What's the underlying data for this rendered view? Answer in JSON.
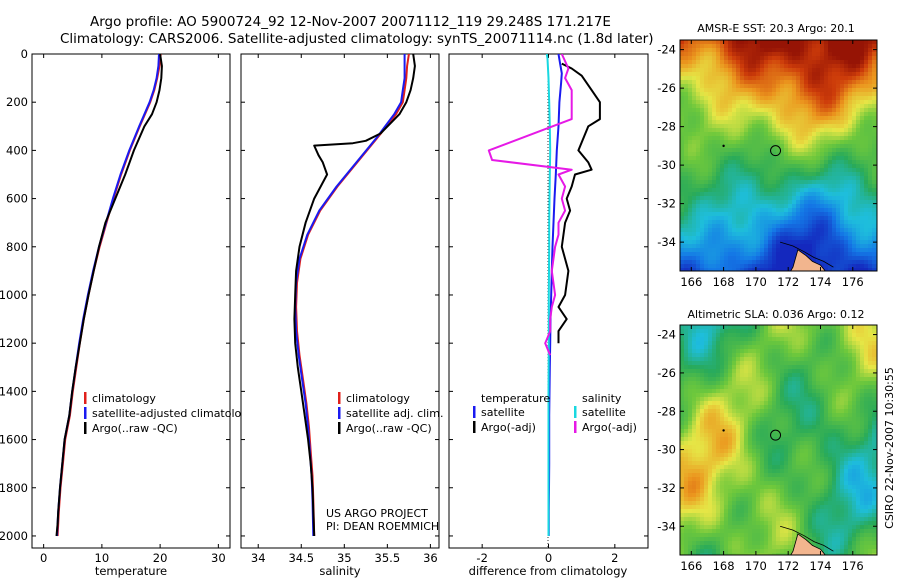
{
  "header": {
    "line1": "Argo profile: AO 5900724_92 12-Nov-2007 20071112_119 29.248S 171.217E",
    "line2": "Climatology: CARS2006. Satellite-adjusted climatology: synTS_20071114.nc (1.8d later)"
  },
  "side_label": "CSIRO 22-Nov-2007 10:30:55",
  "colors": {
    "climatology": "#e0201b",
    "satellite": "#1a1af0",
    "argo": "#000000",
    "sat_salinity": "#19d8e0",
    "argo_salinity": "#e619e6"
  },
  "chart_data": [
    {
      "type": "line",
      "xlabel": "temperature",
      "ylabel": "",
      "xlim": [
        -2,
        32
      ],
      "ylim": [
        2050,
        0
      ],
      "xticks": [
        0,
        10,
        20,
        30
      ],
      "yticks": [
        0,
        200,
        400,
        600,
        800,
        1000,
        1200,
        1400,
        1600,
        1800,
        2000
      ],
      "legend": [
        "climatology",
        "satellite-adjusted climatology",
        "Argo(..raw -QC)"
      ],
      "series": [
        {
          "name": "climatology",
          "color": "#e0201b",
          "x": [
            20.1,
            19.9,
            19.5,
            19.0,
            18.3,
            16.5,
            14.8,
            13.3,
            12.0,
            10.8,
            9.6,
            8.6,
            7.7,
            6.9,
            6.2,
            5.6,
            5.0,
            4.5,
            3.7,
            3.3,
            2.9,
            2.6,
            2.5,
            2.4
          ],
          "y": [
            0,
            50,
            100,
            150,
            200,
            300,
            400,
            500,
            600,
            700,
            800,
            900,
            1000,
            1100,
            1200,
            1300,
            1400,
            1500,
            1600,
            1700,
            1800,
            1900,
            1950,
            2000
          ]
        },
        {
          "name": "satellite-adjusted climatology",
          "color": "#1a1af0",
          "x": [
            19.8,
            19.7,
            19.4,
            18.9,
            18.2,
            16.4,
            14.7,
            13.2,
            11.9,
            10.7,
            9.5,
            8.5,
            7.6,
            6.8,
            6.1,
            5.5,
            4.9,
            4.4,
            3.6,
            3.2,
            2.8,
            2.5,
            2.4,
            2.3
          ],
          "y": [
            0,
            50,
            100,
            150,
            200,
            300,
            400,
            500,
            600,
            700,
            800,
            900,
            1000,
            1100,
            1200,
            1300,
            1400,
            1500,
            1600,
            1700,
            1800,
            1900,
            1950,
            2000
          ]
        },
        {
          "name": "Argo(..raw -QC)",
          "color": "#000000",
          "x": [
            20.0,
            20.3,
            20.2,
            19.9,
            19.4,
            18.6,
            17.3,
            15.5,
            14.0,
            12.3,
            10.6,
            9.5,
            8.6,
            7.7,
            6.9,
            6.2,
            5.5,
            4.9,
            4.4,
            3.6,
            3.2,
            2.8,
            2.5,
            2.4,
            2.2
          ],
          "y": [
            0,
            50,
            100,
            150,
            200,
            250,
            300,
            400,
            500,
            600,
            700,
            800,
            900,
            1000,
            1100,
            1200,
            1300,
            1400,
            1500,
            1600,
            1700,
            1800,
            1900,
            1950,
            2000
          ]
        }
      ]
    },
    {
      "type": "line",
      "xlabel": "salinity",
      "ylabel": "",
      "xlim": [
        33.8,
        36.1
      ],
      "ylim": [
        2050,
        0
      ],
      "xticks": [
        34,
        34.5,
        35,
        35.5,
        36
      ],
      "xticklabels": [
        "34",
        "34.5",
        "35",
        "35.5",
        "36"
      ],
      "legend": [
        "climatology",
        "satellite adj. clim.",
        "Argo(..raw -QC)"
      ],
      "series": [
        {
          "name": "climatology",
          "color": "#e0201b",
          "x": [
            35.75,
            35.73,
            35.72,
            35.7,
            35.68,
            35.6,
            35.38,
            35.15,
            34.92,
            34.72,
            34.58,
            34.49,
            34.45,
            34.44,
            34.45,
            34.48,
            34.52,
            34.56,
            34.59,
            34.61,
            34.63,
            34.64,
            34.65
          ],
          "y": [
            0,
            50,
            100,
            150,
            200,
            250,
            350,
            450,
            550,
            650,
            750,
            850,
            950,
            1050,
            1150,
            1250,
            1350,
            1450,
            1550,
            1650,
            1750,
            1850,
            2000
          ]
        },
        {
          "name": "satellite adj. clim.",
          "color": "#1a1af0",
          "x": [
            35.7,
            35.7,
            35.7,
            35.68,
            35.66,
            35.58,
            35.37,
            35.14,
            34.91,
            34.71,
            34.57,
            34.48,
            34.44,
            34.43,
            34.44,
            34.47,
            34.51,
            34.55,
            34.58,
            34.6,
            34.62,
            34.63,
            34.64
          ],
          "y": [
            0,
            50,
            100,
            150,
            200,
            250,
            350,
            450,
            550,
            650,
            750,
            850,
            950,
            1050,
            1150,
            1250,
            1350,
            1450,
            1550,
            1650,
            1750,
            1850,
            2000
          ]
        },
        {
          "name": "Argo(..raw -QC)",
          "color": "#000000",
          "x": [
            35.8,
            35.82,
            35.8,
            35.77,
            35.72,
            35.64,
            35.42,
            35.25,
            35.1,
            34.65,
            34.7,
            34.75,
            34.8,
            34.65,
            34.55,
            34.48,
            34.44,
            34.43,
            34.42,
            34.43,
            34.46,
            34.5,
            34.54,
            34.58,
            34.61,
            34.63,
            34.65
          ],
          "y": [
            0,
            50,
            100,
            150,
            200,
            250,
            330,
            360,
            370,
            380,
            420,
            450,
            500,
            600,
            700,
            800,
            900,
            1000,
            1100,
            1200,
            1300,
            1400,
            1500,
            1600,
            1700,
            1800,
            2000
          ]
        }
      ]
    },
    {
      "type": "line",
      "xlabel": "difference from climatology",
      "ylabel": "",
      "xlim": [
        -3,
        3
      ],
      "ylim": [
        2050,
        0
      ],
      "xticks": [
        -2,
        0,
        2
      ],
      "legend_titles": [
        "temperature",
        "salinity"
      ],
      "legend": [
        "satellite",
        "Argo(-adj)",
        "satellite",
        "Argo(-adj)"
      ],
      "series": [
        {
          "name": "satellite",
          "group": "temperature",
          "color": "#1a1af0",
          "x": [
            0.3,
            0.35,
            0.4,
            0.38,
            0.33,
            0.3,
            0.25,
            0.22,
            0.18,
            0.15,
            0.12,
            0.1,
            0.08,
            0.06,
            0.05,
            0.04,
            0.03,
            0.02,
            0.02,
            0.01,
            0.01
          ],
          "y": [
            0,
            40,
            80,
            120,
            200,
            300,
            400,
            500,
            600,
            700,
            800,
            900,
            1000,
            1100,
            1200,
            1300,
            1400,
            1500,
            1700,
            1900,
            2000
          ]
        },
        {
          "name": "Argo(-adj)",
          "group": "temperature",
          "color": "#000000",
          "x": [
            0.4,
            0.7,
            1.0,
            1.3,
            1.55,
            1.55,
            1.2,
            0.9,
            1.2,
            1.3,
            0.8,
            0.7,
            0.55,
            0.65,
            0.5,
            0.4,
            0.6,
            0.5,
            0.3,
            0.55,
            0.3,
            0.3
          ],
          "y": [
            40,
            60,
            90,
            150,
            200,
            270,
            300,
            400,
            450,
            480,
            500,
            550,
            600,
            650,
            700,
            800,
            900,
            1000,
            1050,
            1100,
            1150,
            1200
          ]
        },
        {
          "name": "satellite",
          "group": "salinity",
          "color": "#19d8e0",
          "x": [
            -0.05,
            -0.03,
            0.0,
            0.02,
            0.04,
            0.05,
            0.04,
            0.03,
            0.02,
            0.02,
            0.01,
            0.01,
            0.0,
            0.0,
            0.0,
            0.0
          ],
          "y": [
            0,
            20,
            100,
            200,
            300,
            400,
            500,
            600,
            700,
            800,
            1000,
            1200,
            1400,
            1600,
            1800,
            2000
          ]
        },
        {
          "name": "Argo(-adj)",
          "group": "salinity",
          "color": "#e619e6",
          "x": [
            0.4,
            0.6,
            0.5,
            0.7,
            0.7,
            -1.8,
            -1.7,
            0.7,
            0.3,
            0.5,
            0.4,
            0.5,
            0.3,
            0.3,
            0.2,
            0.1,
            0.2,
            0.1,
            0.05,
            0.05,
            -0.1,
            0.05
          ],
          "y": [
            0,
            60,
            100,
            150,
            270,
            400,
            440,
            480,
            500,
            550,
            600,
            650,
            700,
            750,
            800,
            900,
            1000,
            1050,
            1100,
            1150,
            1200,
            1250
          ]
        }
      ]
    },
    {
      "type": "heatmap",
      "title": "AMSR-E SST: 20.3 Argo: 20.1",
      "xlim": [
        165.3,
        177.5
      ],
      "ylim": [
        -35.5,
        -23.5
      ],
      "xticks": [
        166,
        168,
        170,
        172,
        174,
        176
      ],
      "yticks": [
        -24,
        -26,
        -28,
        -30,
        -32,
        -34
      ],
      "marker": {
        "x": 171.217,
        "y": -29.248
      }
    },
    {
      "type": "heatmap",
      "title": "Altimetric SLA: 0.036 Argo: 0.12",
      "xlim": [
        165.3,
        177.5
      ],
      "ylim": [
        -35.5,
        -23.5
      ],
      "xticks": [
        166,
        168,
        170,
        172,
        174,
        176
      ],
      "yticks": [
        -24,
        -26,
        -28,
        -30,
        -32,
        -34
      ],
      "marker": {
        "x": 171.217,
        "y": -29.248
      }
    }
  ],
  "annotations": {
    "project_line1": "US ARGO PROJECT",
    "project_line2": "PI: DEAN ROEMMICH"
  }
}
